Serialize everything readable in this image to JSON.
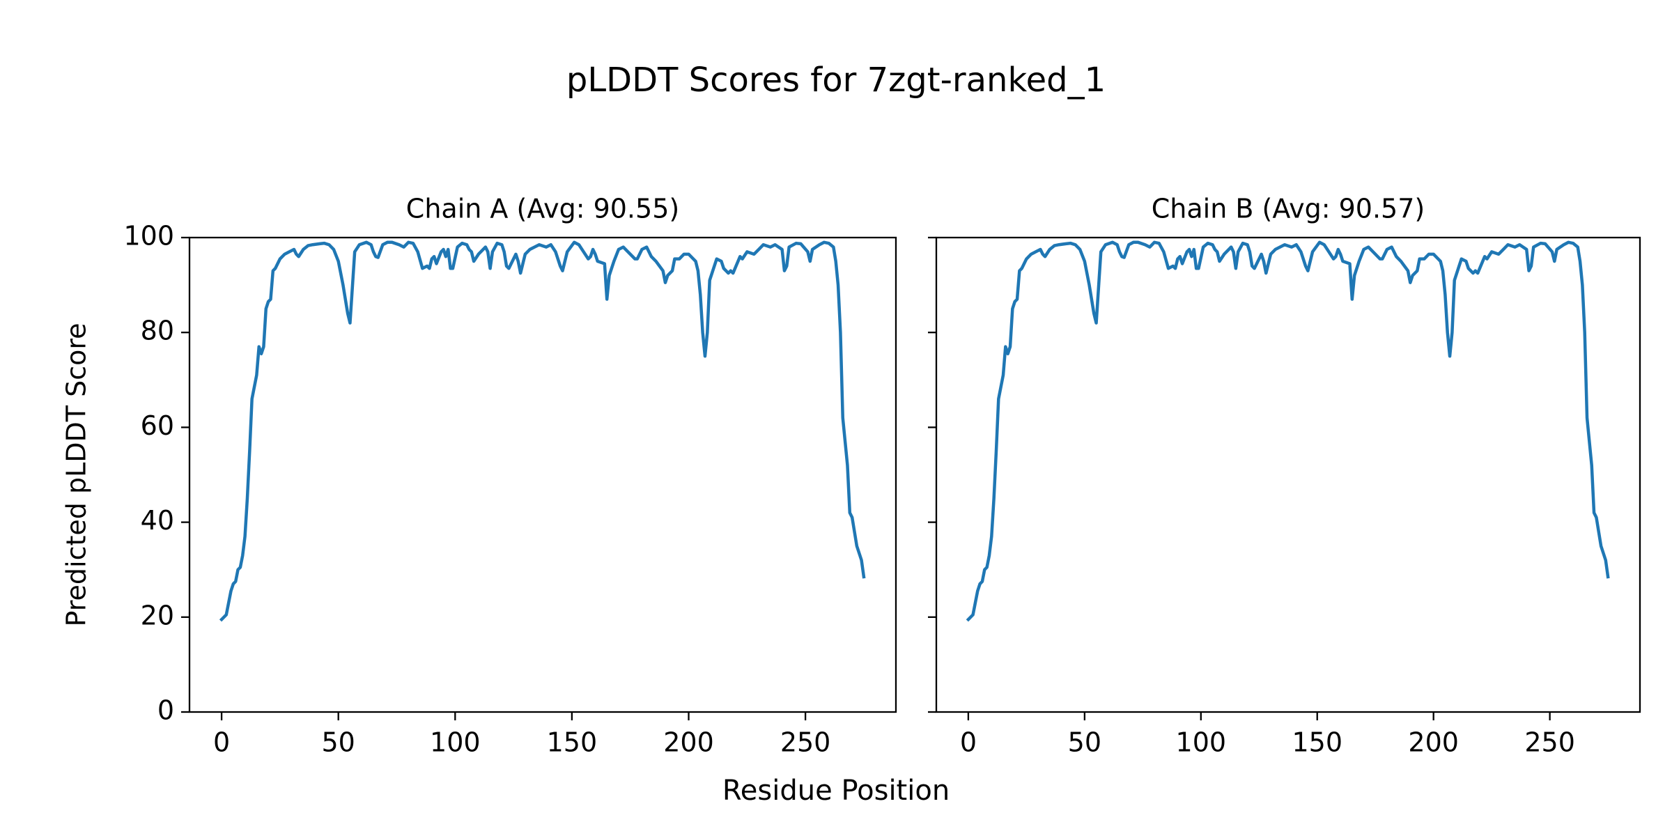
{
  "title": "pLDDT Scores for 7zgt-ranked_1",
  "x_label": "Residue Position",
  "chart_data": [
    {
      "type": "line",
      "title": "Chain A (Avg: 90.55)",
      "y_label": "Predicted pLDDT Score",
      "color": "#1f77b4",
      "xlim": [
        -13.75,
        288.75
      ],
      "ylim": [
        0,
        100
      ],
      "xticks": [
        0,
        50,
        100,
        150,
        200,
        250
      ],
      "yticks": [
        0,
        20,
        40,
        60,
        80,
        100
      ],
      "ytick_labels": true,
      "x": [
        0,
        1,
        2,
        3,
        4,
        5,
        6,
        7,
        8,
        9,
        10,
        11,
        12,
        13,
        15,
        16,
        17,
        18,
        19,
        20,
        21,
        22,
        23,
        25,
        27,
        29,
        31,
        32,
        33,
        35,
        37,
        39,
        42,
        44,
        46,
        48,
        50,
        52,
        54,
        55,
        57,
        59,
        62,
        64,
        65,
        66,
        67,
        69,
        71,
        73,
        76,
        78,
        80,
        82,
        84,
        86,
        88,
        89,
        90,
        91,
        92,
        94,
        95,
        96,
        97,
        98,
        99,
        101,
        103,
        105,
        106,
        107,
        108,
        110,
        113,
        114,
        115,
        116,
        118,
        120,
        121,
        122,
        123,
        126,
        127,
        128,
        130,
        132,
        134,
        136,
        139,
        141,
        143,
        145,
        146,
        148,
        151,
        153,
        155,
        157,
        158,
        159,
        160,
        161,
        164,
        165,
        166,
        168,
        170,
        172,
        174,
        177,
        178,
        180,
        182,
        184,
        186,
        189,
        190,
        191,
        193,
        194,
        196,
        198,
        200,
        203,
        204,
        205,
        206,
        207,
        208,
        209,
        211,
        212,
        214,
        215,
        217,
        218,
        219,
        222,
        223,
        225,
        228,
        230,
        232,
        235,
        237,
        240,
        241,
        242,
        243,
        246,
        248,
        251,
        252,
        253,
        256,
        258,
        260,
        262,
        263,
        264,
        265,
        266,
        268,
        269,
        270,
        271,
        272,
        274,
        275
      ],
      "values": [
        19.5,
        20,
        20.5,
        23,
        25.5,
        27,
        27.5,
        30,
        30.5,
        33,
        37,
        45,
        55,
        66,
        71,
        77,
        75.5,
        77,
        85,
        86.5,
        87,
        93,
        93.5,
        95.5,
        96.5,
        97,
        97.5,
        96.5,
        96,
        97.5,
        98.3,
        98.5,
        98.7,
        98.8,
        98.5,
        97.5,
        95,
        90,
        84,
        82,
        97,
        98.5,
        99,
        98.5,
        97,
        96,
        95.8,
        98.5,
        99,
        99,
        98.5,
        98,
        99,
        98.8,
        97,
        93.5,
        94,
        93.5,
        95.5,
        96,
        94.5,
        97,
        97.5,
        96,
        97.5,
        93.5,
        93.5,
        98,
        98.8,
        98.5,
        97.5,
        97,
        95,
        96.5,
        98,
        97,
        93.5,
        97,
        98.8,
        98.5,
        97,
        94,
        93.5,
        96.5,
        95,
        92.5,
        96.5,
        97.5,
        98,
        98.5,
        98,
        98.5,
        97,
        94,
        93,
        97,
        99,
        98.5,
        97,
        95.5,
        96,
        97.5,
        96.5,
        95,
        94.5,
        87,
        92,
        95,
        97.5,
        98,
        97,
        95.5,
        95.5,
        97.5,
        98,
        96,
        95,
        93,
        90.5,
        92,
        93,
        95.5,
        95.5,
        96.5,
        96.5,
        95,
        93,
        88,
        80,
        75,
        80,
        91,
        94,
        95.5,
        95,
        93.5,
        92.5,
        93,
        92.5,
        96,
        95.5,
        97,
        96.5,
        97.5,
        98.5,
        98,
        98.5,
        97.5,
        93,
        94,
        98,
        98.8,
        98.7,
        97,
        95,
        97.5,
        98.5,
        99,
        98.8,
        98,
        95,
        90,
        80,
        62,
        52,
        42,
        41,
        38,
        35,
        32,
        28.5
      ]
    },
    {
      "type": "line",
      "title": "Chain B (Avg: 90.57)",
      "color": "#1f77b4",
      "xlim": [
        -13.75,
        288.75
      ],
      "ylim": [
        0,
        100
      ],
      "xticks": [
        0,
        50,
        100,
        150,
        200,
        250
      ],
      "yticks": [
        0,
        20,
        40,
        60,
        80,
        100
      ],
      "ytick_labels": false,
      "x": [
        0,
        1,
        2,
        3,
        4,
        5,
        6,
        7,
        8,
        9,
        10,
        11,
        12,
        13,
        15,
        16,
        17,
        18,
        19,
        20,
        21,
        22,
        23,
        25,
        27,
        29,
        31,
        32,
        33,
        35,
        37,
        39,
        42,
        44,
        46,
        48,
        50,
        52,
        54,
        55,
        57,
        59,
        62,
        64,
        65,
        66,
        67,
        69,
        71,
        73,
        76,
        78,
        80,
        82,
        84,
        86,
        88,
        89,
        90,
        91,
        92,
        94,
        95,
        96,
        97,
        98,
        99,
        101,
        103,
        105,
        106,
        107,
        108,
        110,
        113,
        114,
        115,
        116,
        118,
        120,
        121,
        122,
        123,
        126,
        127,
        128,
        130,
        132,
        134,
        136,
        139,
        141,
        143,
        145,
        146,
        148,
        151,
        153,
        155,
        157,
        158,
        159,
        160,
        161,
        164,
        165,
        166,
        168,
        170,
        172,
        174,
        177,
        178,
        180,
        182,
        184,
        186,
        189,
        190,
        191,
        193,
        194,
        196,
        198,
        200,
        203,
        204,
        205,
        206,
        207,
        208,
        209,
        211,
        212,
        214,
        215,
        217,
        218,
        219,
        222,
        223,
        225,
        228,
        230,
        232,
        235,
        237,
        240,
        241,
        242,
        243,
        246,
        248,
        251,
        252,
        253,
        256,
        258,
        260,
        262,
        263,
        264,
        265,
        266,
        268,
        269,
        270,
        271,
        272,
        274,
        275
      ],
      "values": [
        19.5,
        20,
        20.5,
        23,
        25.5,
        27,
        27.5,
        30,
        30.5,
        33,
        37,
        45,
        55,
        66,
        71,
        77,
        75.5,
        77,
        85,
        86.5,
        87,
        93,
        93.5,
        95.5,
        96.5,
        97,
        97.5,
        96.5,
        96,
        97.5,
        98.3,
        98.5,
        98.7,
        98.8,
        98.5,
        97.5,
        95,
        90,
        84,
        82,
        97,
        98.5,
        99,
        98.5,
        97,
        96,
        95.8,
        98.5,
        99,
        99,
        98.5,
        98,
        99,
        98.8,
        97,
        93.5,
        94,
        93.5,
        95.5,
        96,
        94.5,
        97,
        97.5,
        96,
        97.5,
        93.5,
        93.5,
        98,
        98.8,
        98.5,
        97.5,
        97,
        95,
        96.5,
        98,
        97,
        93.5,
        97,
        98.8,
        98.5,
        97,
        94,
        93.5,
        96.5,
        95,
        92.5,
        96.5,
        97.5,
        98,
        98.5,
        98,
        98.5,
        97,
        94,
        93,
        97,
        99,
        98.5,
        97,
        95.5,
        96,
        97.5,
        96.5,
        95,
        94.5,
        87,
        92,
        95,
        97.5,
        98,
        97,
        95.5,
        95.5,
        97.5,
        98,
        96,
        95,
        93,
        90.5,
        92,
        93,
        95.5,
        95.5,
        96.5,
        96.5,
        95,
        93,
        88,
        80,
        75,
        80,
        91,
        94,
        95.5,
        95,
        93.5,
        92.5,
        93,
        92.5,
        96,
        95.5,
        97,
        96.5,
        97.5,
        98.5,
        98,
        98.5,
        97.5,
        93,
        94,
        98,
        98.8,
        98.7,
        97,
        95,
        97.5,
        98.5,
        99,
        98.8,
        98,
        95,
        90,
        80,
        62,
        52,
        42,
        41,
        38,
        35,
        32,
        28.5
      ]
    }
  ]
}
